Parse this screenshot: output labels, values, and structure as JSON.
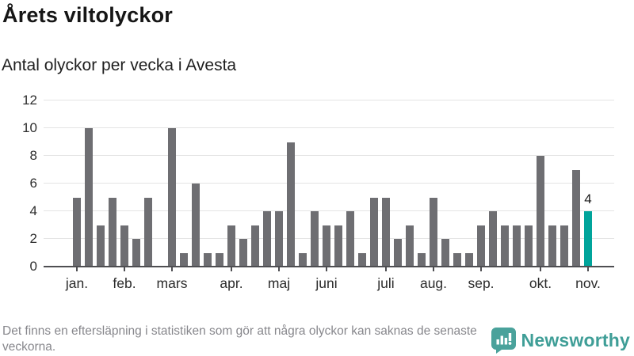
{
  "chart_data": {
    "type": "bar",
    "title": "Årets viltolyckor",
    "subtitle": "Antal olyckor per vecka i Avesta",
    "x_unit": "vecka",
    "values": [
      5,
      10,
      3,
      5,
      3,
      2,
      5,
      0,
      10,
      1,
      6,
      1,
      1,
      3,
      2,
      3,
      4,
      4,
      9,
      1,
      4,
      3,
      3,
      4,
      1,
      5,
      5,
      2,
      3,
      1,
      5,
      2,
      1,
      1,
      3,
      4,
      3,
      3,
      3,
      8,
      3,
      3,
      7,
      4
    ],
    "highlight_last_index": 43,
    "last_value_label": "4",
    "month_ticks": [
      {
        "label": "jan.",
        "week_index": 0
      },
      {
        "label": "feb.",
        "week_index": 4
      },
      {
        "label": "mars",
        "week_index": 8
      },
      {
        "label": "apr.",
        "week_index": 13
      },
      {
        "label": "maj",
        "week_index": 17
      },
      {
        "label": "juni",
        "week_index": 21
      },
      {
        "label": "juli",
        "week_index": 26
      },
      {
        "label": "aug.",
        "week_index": 30
      },
      {
        "label": "sep.",
        "week_index": 34
      },
      {
        "label": "okt.",
        "week_index": 39
      },
      {
        "label": "nov.",
        "week_index": 43
      }
    ],
    "y_ticks": [
      0,
      2,
      4,
      6,
      8,
      10,
      12
    ],
    "ylim": [
      0,
      12
    ],
    "grid": "horizontal",
    "legend": "none",
    "colors": {
      "bar": "#6e6e72",
      "highlight": "#00a49b",
      "gridline": "#e4e4e4",
      "axis": "#4e4e52",
      "logo": "#3f9e97"
    }
  },
  "footer": {
    "note": "Det finns en eftersläpning i statistiken som gör att några olyckor kan saknas de senaste veckorna.",
    "brand": "Newsworthy"
  }
}
